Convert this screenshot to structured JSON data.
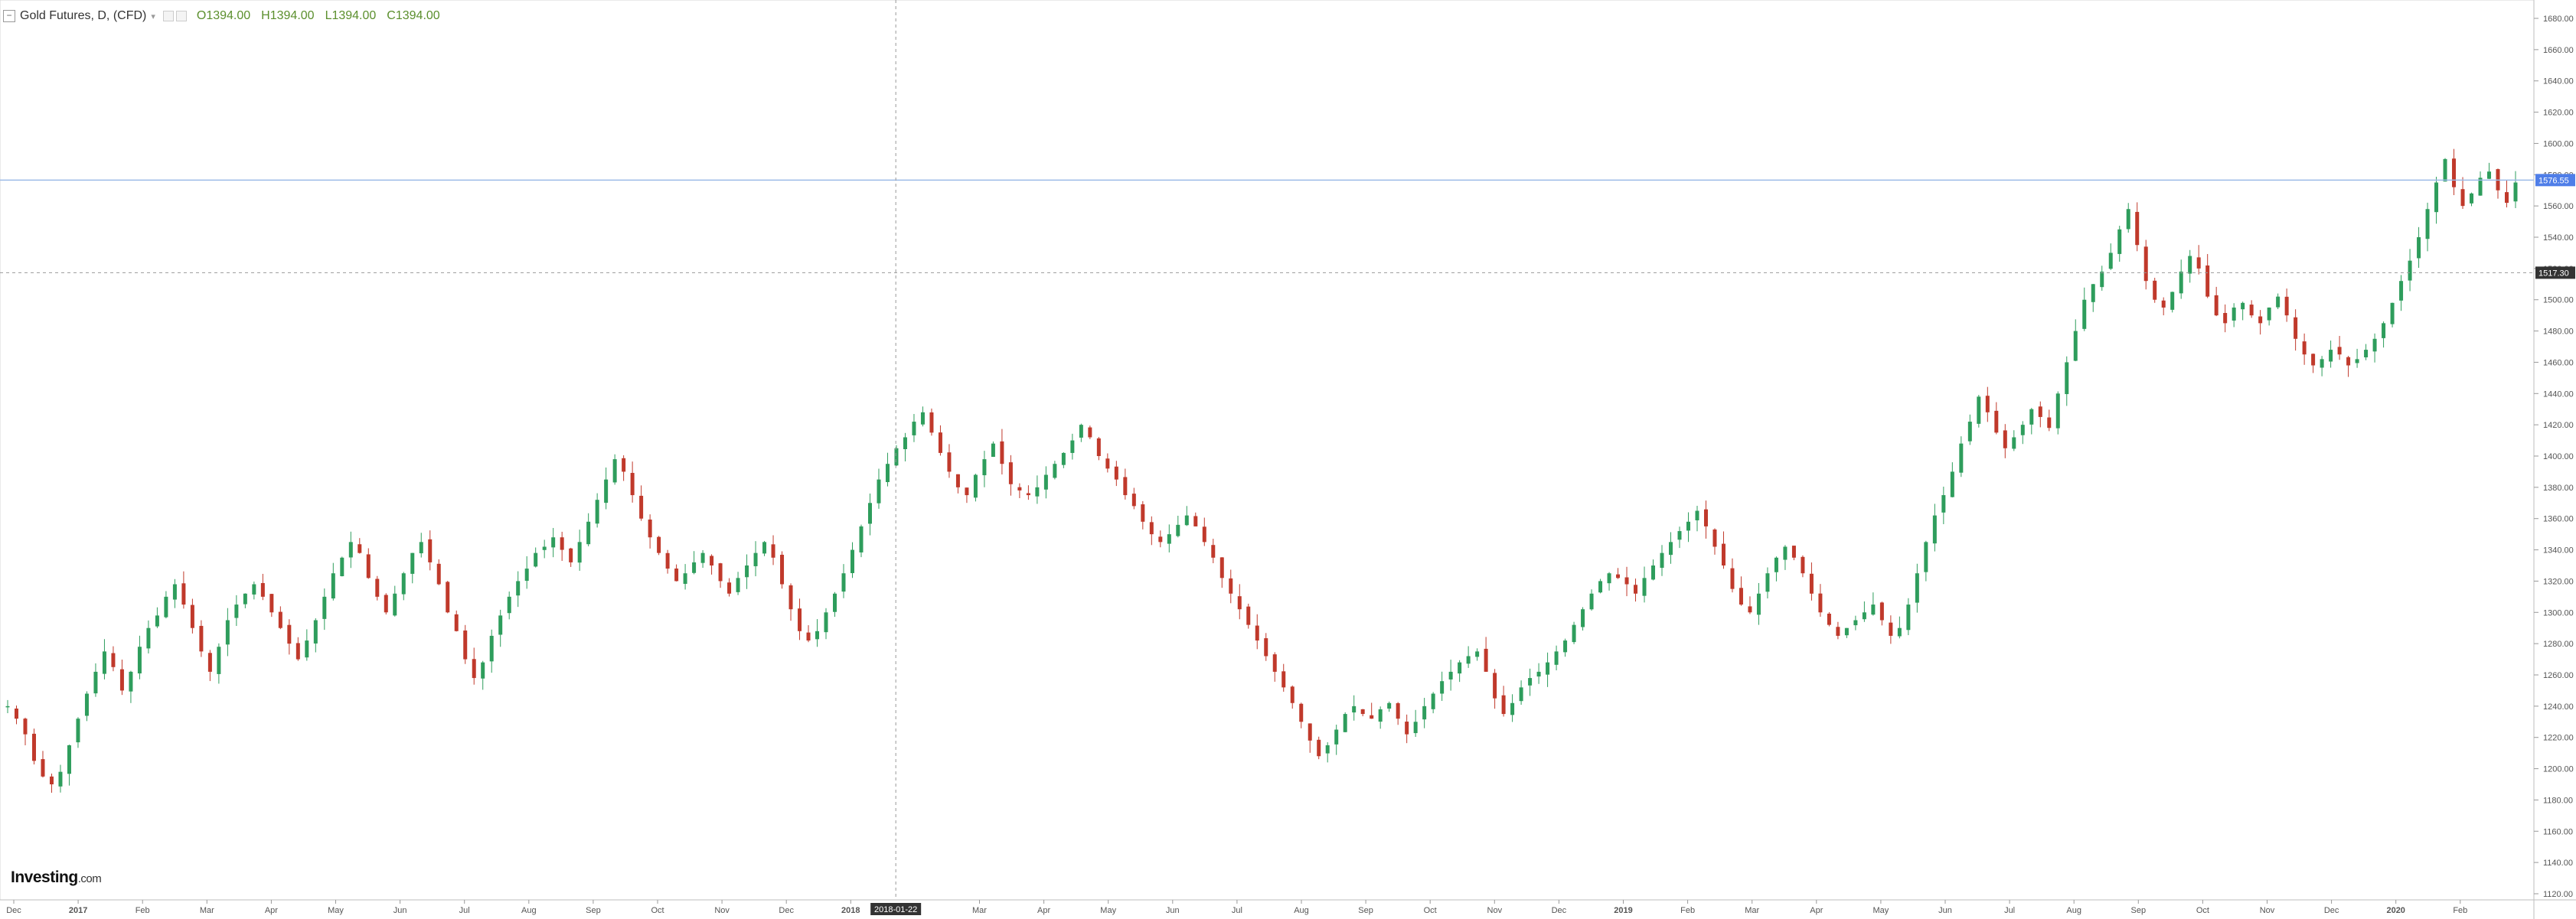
{
  "header": {
    "title": "Gold Futures, D, (CFD)",
    "open": "O1394.00",
    "high": "H1394.00",
    "low": "L1394.00",
    "close": "C1394.00"
  },
  "logo": {
    "brand": "Investing",
    "suffix": ".com"
  },
  "colors": {
    "up": "#2e9d5c",
    "down": "#c0392b",
    "price_label": "#4f7ee8",
    "crosshair_label": "#333333"
  },
  "chart_data": {
    "type": "candlestick",
    "title": "Gold Futures, D, (CFD)",
    "ylim": [
      1120,
      1680
    ],
    "y_ticks": [
      "1680.00",
      "1660.00",
      "1640.00",
      "1620.00",
      "1600.00",
      "1580.00",
      "1560.00",
      "1540.00",
      "1520.00",
      "1500.00",
      "1480.00",
      "1460.00",
      "1440.00",
      "1420.00",
      "1400.00",
      "1380.00",
      "1360.00",
      "1340.00",
      "1320.00",
      "1300.00",
      "1280.00",
      "1260.00",
      "1240.00",
      "1220.00",
      "1200.00",
      "1180.00",
      "1160.00",
      "1140.00",
      "1120.00"
    ],
    "x_ticks": [
      {
        "label": "Dec",
        "month": 0
      },
      {
        "label": "2017",
        "month": 1
      },
      {
        "label": "Feb",
        "month": 2
      },
      {
        "label": "Mar",
        "month": 3
      },
      {
        "label": "Apr",
        "month": 4
      },
      {
        "label": "May",
        "month": 5
      },
      {
        "label": "Jun",
        "month": 6
      },
      {
        "label": "Jul",
        "month": 7
      },
      {
        "label": "Aug",
        "month": 8
      },
      {
        "label": "Sep",
        "month": 9
      },
      {
        "label": "Oct",
        "month": 10
      },
      {
        "label": "Nov",
        "month": 11
      },
      {
        "label": "Dec",
        "month": 12
      },
      {
        "label": "2018",
        "month": 13
      },
      {
        "label": "Mar",
        "month": 15
      },
      {
        "label": "Apr",
        "month": 16
      },
      {
        "label": "May",
        "month": 17
      },
      {
        "label": "Jun",
        "month": 18
      },
      {
        "label": "Jul",
        "month": 19
      },
      {
        "label": "Aug",
        "month": 20
      },
      {
        "label": "Sep",
        "month": 21
      },
      {
        "label": "Oct",
        "month": 22
      },
      {
        "label": "Nov",
        "month": 23
      },
      {
        "label": "Dec",
        "month": 24
      },
      {
        "label": "2019",
        "month": 25
      },
      {
        "label": "Feb",
        "month": 26
      },
      {
        "label": "Mar",
        "month": 27
      },
      {
        "label": "Apr",
        "month": 28
      },
      {
        "label": "May",
        "month": 29
      },
      {
        "label": "Jun",
        "month": 30
      },
      {
        "label": "Jul",
        "month": 31
      },
      {
        "label": "Aug",
        "month": 32
      },
      {
        "label": "Sep",
        "month": 33
      },
      {
        "label": "Oct",
        "month": 34
      },
      {
        "label": "Nov",
        "month": 35
      },
      {
        "label": "Dec",
        "month": 36
      },
      {
        "label": "2020",
        "month": 37
      },
      {
        "label": "Feb",
        "month": 38
      }
    ],
    "current_price": 1576.55,
    "current_price_label": "1576.55",
    "crosshair_price": 1517.3,
    "crosshair_price_label": "1517.30",
    "crosshair_date": "2018-01-22",
    "crosshair_month": 13.7,
    "series": [
      {
        "values": [
          1240,
          1232,
          1222,
          1205,
          1195,
          1190,
          1198,
          1215,
          1232,
          1248,
          1262,
          1275,
          1265,
          1250,
          1262,
          1278,
          1290,
          1298,
          1310,
          1318,
          1305,
          1290,
          1275,
          1262,
          1278,
          1295,
          1305,
          1312,
          1318,
          1310,
          1300,
          1290,
          1280,
          1270,
          1282,
          1295,
          1310,
          1325,
          1335,
          1345,
          1338,
          1322,
          1310,
          1300,
          1312,
          1325,
          1338,
          1345,
          1332,
          1318,
          1300,
          1288,
          1270,
          1258,
          1268,
          1285,
          1298,
          1310,
          1320,
          1328,
          1338,
          1342,
          1348,
          1340,
          1332,
          1345,
          1358,
          1372,
          1385,
          1398,
          1390,
          1375,
          1360,
          1348,
          1338,
          1328,
          1320,
          1325,
          1332,
          1338,
          1330,
          1320,
          1312,
          1322,
          1330,
          1338,
          1345,
          1335,
          1318,
          1302,
          1288,
          1282,
          1288,
          1300,
          1312,
          1325,
          1340,
          1355,
          1370,
          1385,
          1395,
          1405,
          1412,
          1422,
          1428,
          1415,
          1402,
          1390,
          1380,
          1375,
          1388,
          1398,
          1408,
          1395,
          1382,
          1378,
          1375,
          1380,
          1388,
          1395,
          1402,
          1410,
          1420,
          1412,
          1400,
          1392,
          1385,
          1375,
          1368,
          1358,
          1350,
          1345,
          1350,
          1356,
          1362,
          1355,
          1345,
          1335,
          1322,
          1312,
          1302,
          1292,
          1282,
          1272,
          1262,
          1252,
          1242,
          1230,
          1218,
          1208,
          1215,
          1225,
          1235,
          1240,
          1235,
          1232,
          1238,
          1242,
          1232,
          1222,
          1230,
          1240,
          1248,
          1256,
          1262,
          1268,
          1272,
          1275,
          1262,
          1245,
          1235,
          1242,
          1252,
          1258,
          1262,
          1268,
          1275,
          1282,
          1292,
          1302,
          1312,
          1320,
          1325,
          1322,
          1318,
          1312,
          1322,
          1330,
          1338,
          1345,
          1352,
          1358,
          1365,
          1355,
          1342,
          1330,
          1315,
          1305,
          1300,
          1312,
          1325,
          1335,
          1342,
          1335,
          1325,
          1312,
          1300,
          1292,
          1285,
          1290,
          1295,
          1300,
          1305,
          1295,
          1285,
          1290,
          1305,
          1325,
          1345,
          1362,
          1375,
          1390,
          1408,
          1422,
          1438,
          1428,
          1415,
          1405,
          1412,
          1420,
          1430,
          1425,
          1418,
          1440,
          1460,
          1480,
          1500,
          1510,
          1518,
          1530,
          1545,
          1558,
          1535,
          1512,
          1500,
          1495,
          1505,
          1518,
          1528,
          1520,
          1502,
          1490,
          1485,
          1495,
          1498,
          1490,
          1485,
          1495,
          1502,
          1490,
          1475,
          1465,
          1458,
          1462,
          1468,
          1465,
          1458,
          1462,
          1468,
          1475,
          1485,
          1498,
          1512,
          1525,
          1540,
          1558,
          1575,
          1590,
          1572,
          1560,
          1568,
          1578,
          1582,
          1570,
          1562,
          1575
        ]
      },
      {
        "name": "",
        "values": []
      }
    ]
  }
}
